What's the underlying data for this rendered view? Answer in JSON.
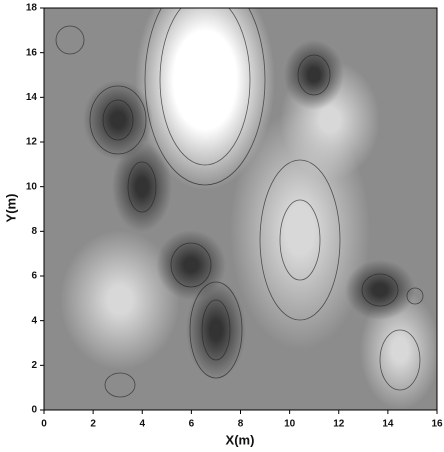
{
  "chart_data": {
    "type": "contour",
    "xlabel": "X(m)",
    "ylabel": "Y(m)",
    "xlim": [
      0,
      16
    ],
    "ylim": [
      0,
      18
    ],
    "xticks": [
      0,
      2,
      4,
      6,
      8,
      10,
      12,
      14,
      16
    ],
    "yticks": [
      0,
      2,
      4,
      6,
      8,
      10,
      12,
      14,
      16,
      18
    ]
  }
}
